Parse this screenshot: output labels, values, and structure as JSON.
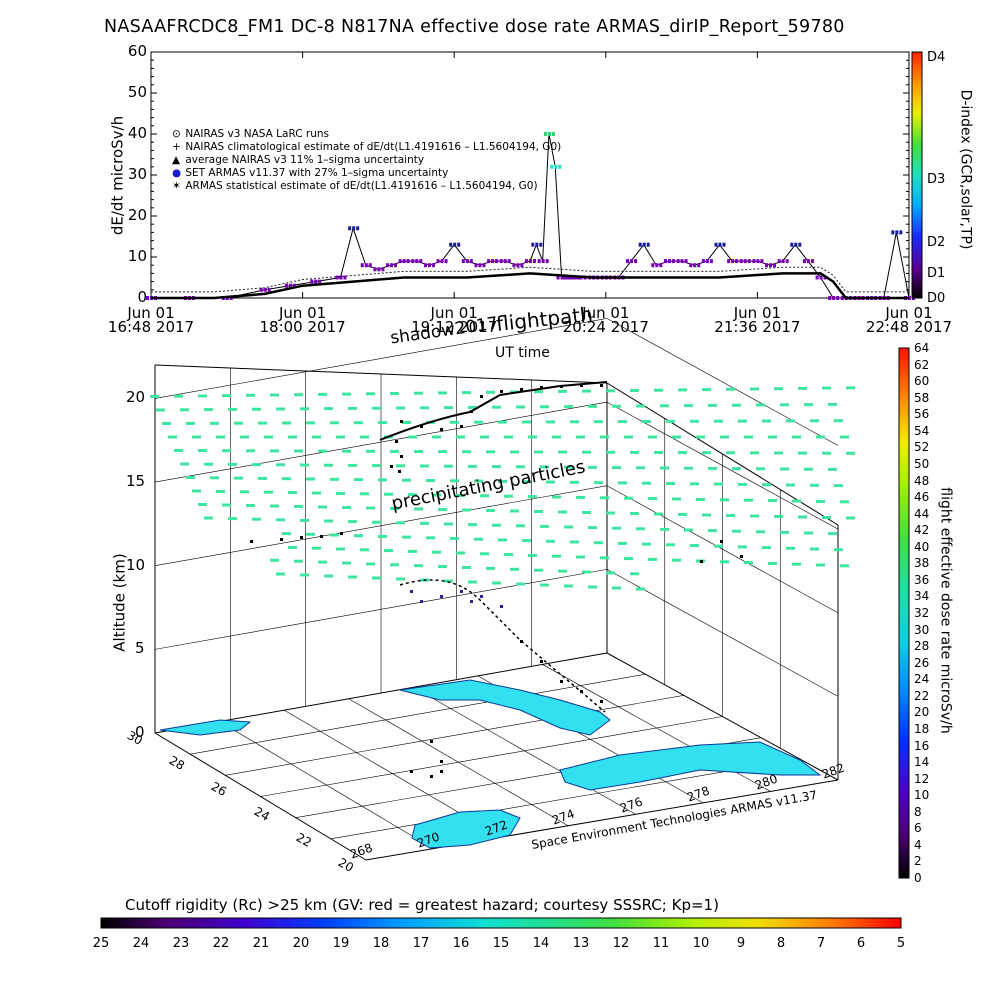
{
  "page_title": "NASAAFRCDC8_FM1 DC-8   N817NA effective dose rate ARMAS_dirIP_Report_59780",
  "chart_data": [
    {
      "type": "line",
      "ylabel": "dE/dt microSv/h",
      "xlabel": "UT time",
      "ylim": [
        0,
        60
      ],
      "y_ticks": [
        "0",
        "10",
        "20",
        "30",
        "40",
        "50",
        "60"
      ],
      "x_ticks": [
        {
          "line1": "Jun 01",
          "line2": "16:48 2017"
        },
        {
          "line1": "Jun 01",
          "line2": "18:00 2017"
        },
        {
          "line1": "Jun 01",
          "line2": "19:12 2017"
        },
        {
          "line1": "Jun 01",
          "line2": "20:24 2017"
        },
        {
          "line1": "Jun 01",
          "line2": "21:36 2017"
        },
        {
          "line1": "Jun 01",
          "line2": "22:48 2017"
        }
      ],
      "legend": [
        {
          "marker": "⊙",
          "text": "NAIRAS v3 NASA LaRC runs"
        },
        {
          "marker": "+",
          "text": "NAIRAS climatological estimate of dE/dt(L1.4191616 – L1.5604194, G0)"
        },
        {
          "marker": "▲",
          "text": "average NAIRAS v3 11% 1–sigma uncertainty"
        },
        {
          "marker": "●",
          "text": "SET ARMAS v11.37 with 27% 1–sigma uncertainty"
        },
        {
          "marker": "✶",
          "text": "ARMAS statistical estimate of dE/dt(L1.4191616 – L1.5604194, G0)"
        }
      ],
      "legend_placement": "top-left",
      "right_colorbar": {
        "label": "D-index (GCR,solar,TP)",
        "ticks": [
          "D4",
          "D3",
          "D2",
          "D1",
          "D0"
        ]
      },
      "series": [
        {
          "name": "SET ARMAS v11.37 with 27% 1–sigma uncertainty",
          "x_hours": [
            0,
            0.3,
            0.6,
            0.9,
            1.1,
            1.3,
            1.5,
            1.6,
            1.7,
            1.8,
            1.9,
            2.0,
            2.1,
            2.2,
            2.3,
            2.4,
            2.5,
            2.6,
            2.7,
            2.8,
            2.9,
            3.0,
            3.05,
            3.1,
            3.15,
            3.2,
            3.25,
            3.3,
            3.35,
            3.4,
            3.5,
            3.6,
            3.7,
            3.8,
            3.9,
            4.0,
            4.1,
            4.2,
            4.3,
            4.4,
            4.5,
            4.6,
            4.7,
            4.8,
            4.9,
            5.0,
            5.1,
            5.2,
            5.3,
            5.4,
            5.5,
            5.6,
            5.7,
            5.8,
            5.9,
            6.0
          ],
          "values": [
            0,
            0,
            0,
            2,
            3,
            4,
            5,
            17,
            8,
            7,
            8,
            9,
            9,
            8,
            9,
            13,
            9,
            8,
            9,
            9,
            8,
            9,
            13,
            9,
            40,
            32,
            5,
            5,
            5,
            5,
            5,
            5,
            5,
            9,
            13,
            8,
            9,
            9,
            8,
            9,
            13,
            9,
            9,
            9,
            8,
            9,
            13,
            9,
            5,
            0,
            0,
            0,
            0,
            0,
            16,
            0
          ]
        },
        {
          "name": "ARMAS statistical estimate of dE/dt(L1.4191616 – L1.5604194, G0)",
          "x_hours": [
            0,
            0.5,
            0.9,
            1.2,
            1.6,
            2.0,
            2.5,
            3.0,
            3.5,
            4.0,
            4.5,
            5.0,
            5.3,
            5.4,
            5.5,
            6.0
          ],
          "values": [
            0,
            0,
            1,
            3,
            4,
            5,
            5,
            6,
            5,
            5,
            5,
            6,
            6,
            4,
            0,
            0
          ]
        }
      ]
    },
    {
      "type": "scatter",
      "zlabel": "Altitude (km)",
      "z_ticks": [
        "0",
        "5",
        "10",
        "15",
        "20"
      ],
      "lat_ticks": [
        "30",
        "28",
        "26",
        "24",
        "22",
        "20"
      ],
      "lon_ticks": [
        "268",
        "270",
        "272",
        "274",
        "276",
        "278",
        "280",
        "282"
      ],
      "annotations": [
        "flightpath",
        "shadow2017",
        "precipitating particles"
      ],
      "credit": "Space Environment Technologies ARMAS v11.37",
      "right_colorbar": {
        "label": "flight effective dose rate microSv/h",
        "ticks": [
          "64",
          "62",
          "60",
          "58",
          "56",
          "54",
          "52",
          "50",
          "48",
          "46",
          "44",
          "42",
          "40",
          "38",
          "36",
          "34",
          "32",
          "30",
          "28",
          "26",
          "24",
          "22",
          "20",
          "18",
          "16",
          "14",
          "12",
          "10",
          "8",
          "6",
          "4",
          "2",
          "0"
        ]
      },
      "bottom_colorbar": {
        "title": "Cutoff rigidity (Rc) >25 km (GV: red = greatest hazard; courtesy SSSRC; Kp=1)",
        "ticks": [
          "25",
          "24",
          "23",
          "22",
          "21",
          "20",
          "19",
          "18",
          "17",
          "16",
          "15",
          "14",
          "13",
          "12",
          "11",
          "10",
          "9",
          "8",
          "7",
          "6",
          "5"
        ]
      }
    }
  ],
  "colors": {
    "armas": "#7a00b8",
    "armas_edge": "#1b1b99",
    "nairas": "#000000",
    "particles": "#3ce6a0",
    "land": "#33e0f0",
    "peak": "#30d070"
  }
}
